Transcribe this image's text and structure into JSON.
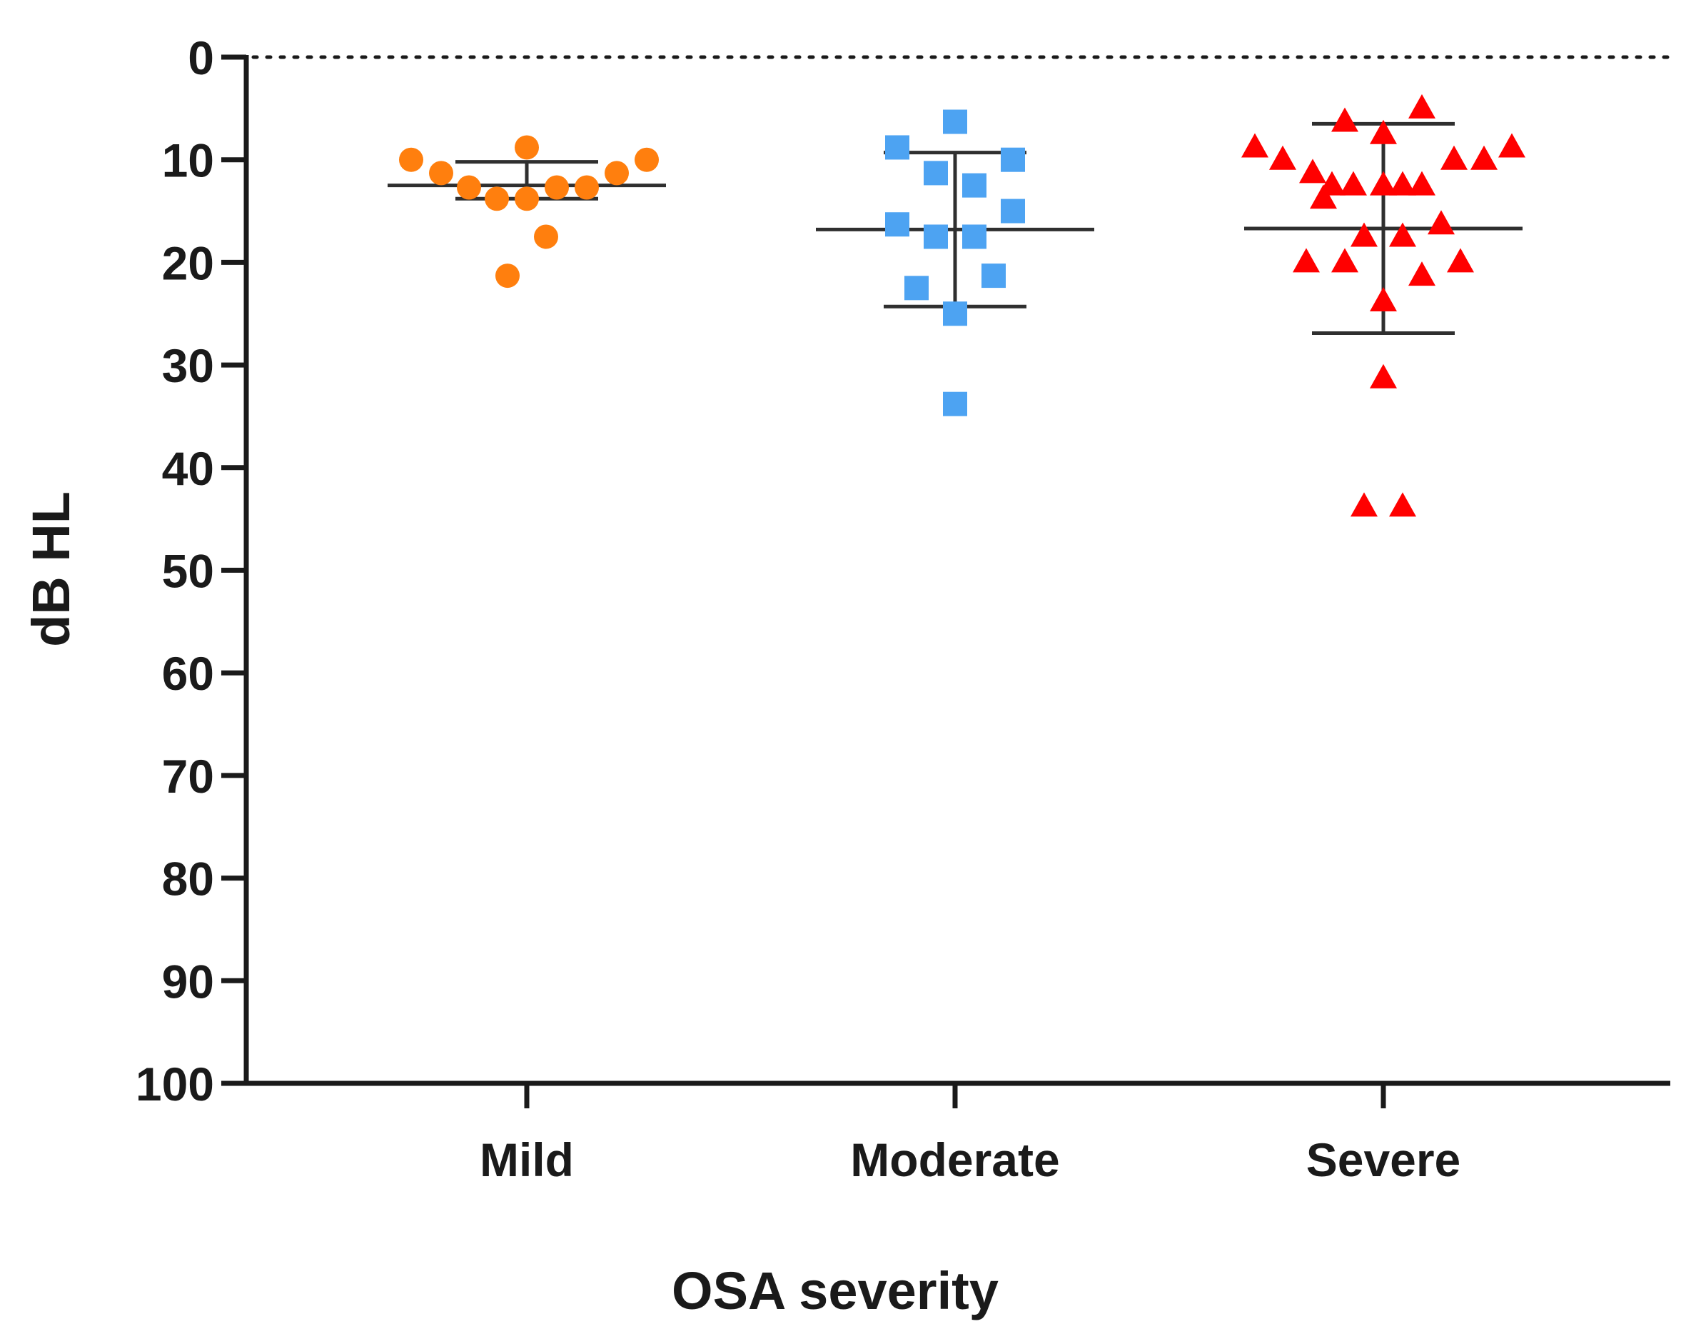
{
  "chart_data": {
    "type": "scatter",
    "subtype": "dot-plot-with-mean-sd",
    "title": "",
    "xlabel": "OSA severity",
    "ylabel": "dB HL",
    "y_inverted": true,
    "ylim": [
      0,
      100
    ],
    "yticks": [
      0,
      10,
      20,
      30,
      40,
      50,
      60,
      70,
      80,
      90,
      100
    ],
    "reference_line": {
      "y": 0,
      "style": "dotted"
    },
    "categories": [
      "Mild",
      "Moderate",
      "Severe"
    ],
    "series": [
      {
        "name": "Mild",
        "marker": "circle",
        "color": "#FF7F0E",
        "mean": 12.5,
        "sd_low": 10.2,
        "sd_high": 13.8,
        "points": [
          {
            "offset": -0.27,
            "y": 10.0
          },
          {
            "offset": -0.2,
            "y": 11.3
          },
          {
            "offset": -0.135,
            "y": 12.7
          },
          {
            "offset": -0.07,
            "y": 13.8
          },
          {
            "offset": 0.0,
            "y": 8.8
          },
          {
            "offset": 0.0,
            "y": 13.8
          },
          {
            "offset": 0.07,
            "y": 12.7
          },
          {
            "offset": 0.14,
            "y": 12.7
          },
          {
            "offset": 0.21,
            "y": 11.3
          },
          {
            "offset": 0.28,
            "y": 10.0
          },
          {
            "offset": 0.045,
            "y": 17.5
          },
          {
            "offset": -0.045,
            "y": 21.3
          }
        ]
      },
      {
        "name": "Moderate",
        "marker": "square",
        "color": "#4DA3F2",
        "mean": 16.8,
        "sd_low": 9.3,
        "sd_high": 24.3,
        "points": [
          {
            "offset": 0.0,
            "y": 6.3
          },
          {
            "offset": -0.135,
            "y": 8.8
          },
          {
            "offset": 0.135,
            "y": 10.0
          },
          {
            "offset": -0.045,
            "y": 11.3
          },
          {
            "offset": 0.045,
            "y": 12.5
          },
          {
            "offset": 0.135,
            "y": 15.0
          },
          {
            "offset": -0.135,
            "y": 16.3
          },
          {
            "offset": -0.045,
            "y": 17.5
          },
          {
            "offset": 0.045,
            "y": 17.5
          },
          {
            "offset": 0.09,
            "y": 21.3
          },
          {
            "offset": -0.09,
            "y": 22.5
          },
          {
            "offset": 0.0,
            "y": 25.0
          },
          {
            "offset": 0.0,
            "y": 33.8
          }
        ]
      },
      {
        "name": "Severe",
        "marker": "triangle",
        "color": "#FF0000",
        "mean": 16.7,
        "sd_low": 6.5,
        "sd_high": 26.9,
        "points": [
          {
            "offset": 0.09,
            "y": 5.0
          },
          {
            "offset": -0.09,
            "y": 6.3
          },
          {
            "offset": 0.0,
            "y": 7.5
          },
          {
            "offset": -0.3,
            "y": 8.8
          },
          {
            "offset": 0.3,
            "y": 8.8
          },
          {
            "offset": -0.235,
            "y": 10.0
          },
          {
            "offset": 0.165,
            "y": 10.0
          },
          {
            "offset": 0.235,
            "y": 10.0
          },
          {
            "offset": -0.165,
            "y": 11.3
          },
          {
            "offset": -0.12,
            "y": 12.5
          },
          {
            "offset": -0.07,
            "y": 12.5
          },
          {
            "offset": 0.0,
            "y": 12.5
          },
          {
            "offset": 0.045,
            "y": 12.5
          },
          {
            "offset": 0.09,
            "y": 12.5
          },
          {
            "offset": -0.14,
            "y": 13.8
          },
          {
            "offset": 0.135,
            "y": 16.3
          },
          {
            "offset": -0.045,
            "y": 17.5
          },
          {
            "offset": 0.045,
            "y": 17.5
          },
          {
            "offset": -0.18,
            "y": 20.0
          },
          {
            "offset": -0.09,
            "y": 20.0
          },
          {
            "offset": 0.18,
            "y": 20.0
          },
          {
            "offset": 0.09,
            "y": 21.3
          },
          {
            "offset": 0.0,
            "y": 23.8
          },
          {
            "offset": 0.0,
            "y": 31.3
          },
          {
            "offset": -0.045,
            "y": 43.8
          },
          {
            "offset": 0.045,
            "y": 43.8
          }
        ]
      }
    ]
  }
}
